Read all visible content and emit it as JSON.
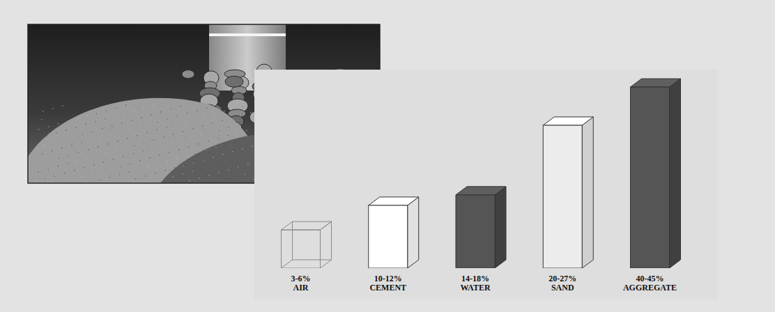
{
  "chart_data": {
    "type": "bar",
    "categories": [
      "3-6% AIR",
      "10-12% CEMENT",
      "14-18% WATER",
      "20-27% SAND",
      "40-45% AGGREGATE"
    ],
    "values": [
      9.5,
      15.6,
      18.2,
      35.5,
      45
    ],
    "colors": [
      "none",
      "#ffffff",
      "#555555",
      "#ececec",
      "#555555"
    ],
    "tick_labels": "x",
    "grid": false
  }
}
